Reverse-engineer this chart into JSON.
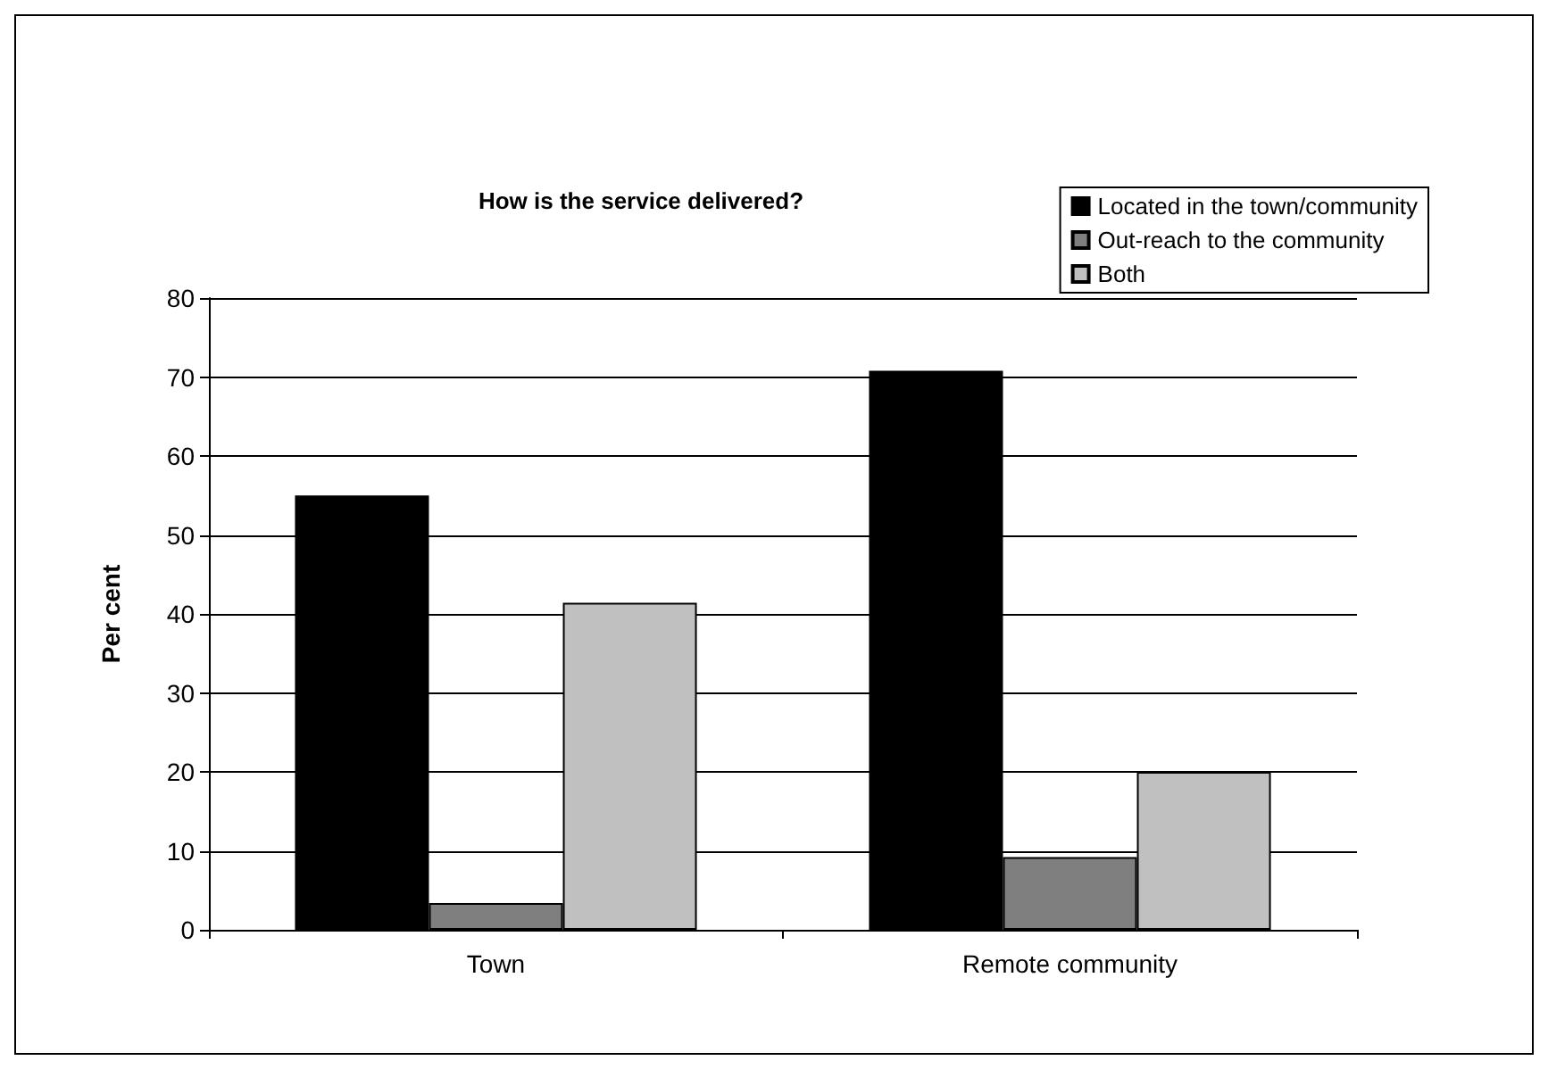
{
  "chart_data": {
    "type": "bar",
    "title": "How is the service delivered?",
    "ylabel": "Per cent",
    "categories": [
      "Town",
      "Remote community"
    ],
    "series": [
      {
        "name": "Located in the town/community",
        "color": "#000000",
        "values": [
          55,
          70.8
        ]
      },
      {
        "name": "Out-reach to the community",
        "color": "#7f7f7f",
        "values": [
          3.4,
          9.2
        ]
      },
      {
        "name": "Both",
        "color": "#c0c0c0",
        "values": [
          41.4,
          20
        ]
      }
    ],
    "ylim": [
      0,
      80
    ],
    "yticks": [
      0,
      10,
      20,
      30,
      40,
      50,
      60,
      70,
      80
    ],
    "grid": "y",
    "legend": "top right"
  }
}
